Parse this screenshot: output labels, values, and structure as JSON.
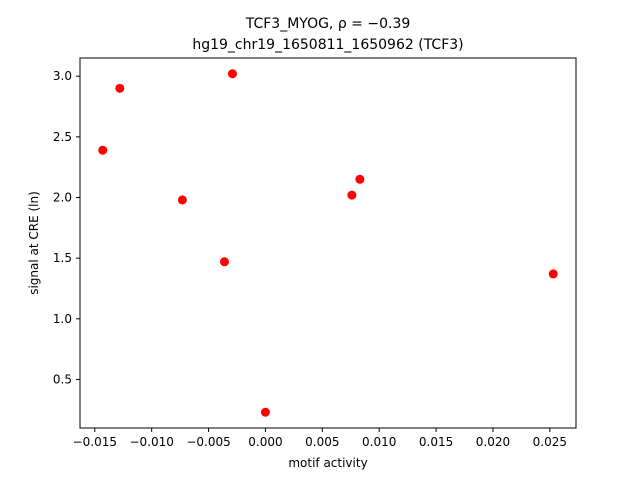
{
  "chart_data": {
    "type": "scatter",
    "title_line1": "TCF3_MYOG, ρ = −0.39",
    "title_line2": "hg19_chr19_1650811_1650962 (TCF3)",
    "xlabel": "motif activity",
    "ylabel": "signal at CRE (ln)",
    "xlim": [
      -0.0163,
      0.0273
    ],
    "ylim": [
      0.1,
      3.15
    ],
    "xticks": [
      -0.015,
      -0.01,
      -0.005,
      0.0,
      0.005,
      0.01,
      0.015,
      0.02,
      0.025
    ],
    "xtick_labels": [
      "−0.015",
      "−0.010",
      "−0.005",
      "0.000",
      "0.005",
      "0.010",
      "0.015",
      "0.020",
      "0.025"
    ],
    "yticks": [
      0.5,
      1.0,
      1.5,
      2.0,
      2.5,
      3.0
    ],
    "ytick_labels": [
      "0.5",
      "1.0",
      "1.5",
      "2.0",
      "2.5",
      "3.0"
    ],
    "grid": false,
    "marker_color": "#ff0000",
    "points": [
      {
        "x": -0.0143,
        "y": 2.39
      },
      {
        "x": -0.0128,
        "y": 2.9
      },
      {
        "x": -0.0073,
        "y": 1.98
      },
      {
        "x": -0.0036,
        "y": 1.47
      },
      {
        "x": -0.0029,
        "y": 3.02
      },
      {
        "x": 0.0,
        "y": 0.23
      },
      {
        "x": 0.0076,
        "y": 2.02
      },
      {
        "x": 0.0083,
        "y": 2.15
      },
      {
        "x": 0.0253,
        "y": 1.37
      }
    ]
  }
}
